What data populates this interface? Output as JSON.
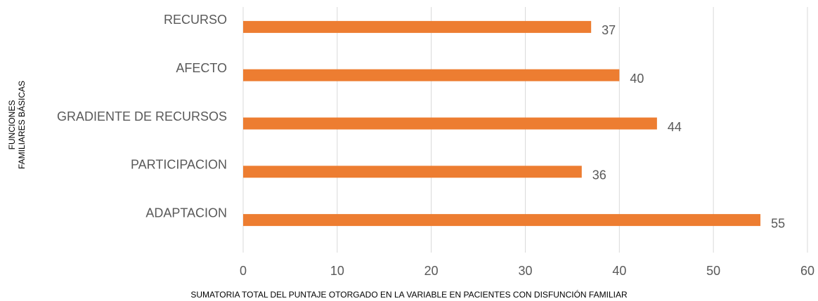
{
  "chart_data": {
    "type": "bar",
    "orientation": "horizontal",
    "categories": [
      "RECURSO",
      "AFECTO",
      "GRADIENTE DE RECURSOS",
      "PARTICIPACION",
      "ADAPTACION"
    ],
    "values": [
      37,
      40,
      44,
      36,
      55
    ],
    "color": "#ed7d31",
    "xlim": [
      0,
      60
    ],
    "xticks": [
      0,
      10,
      20,
      30,
      40,
      50,
      60
    ],
    "grid": true,
    "xlabel": "SUMATORIA TOTAL DEL PUNTAJE OTORGADO EN LA VARIABLE EN PACIENTES CON DISFUNCIÓN FAMILIAR",
    "ylabel": [
      "FUNCIONES",
      "FAMILIARES BÁSICAS"
    ]
  }
}
